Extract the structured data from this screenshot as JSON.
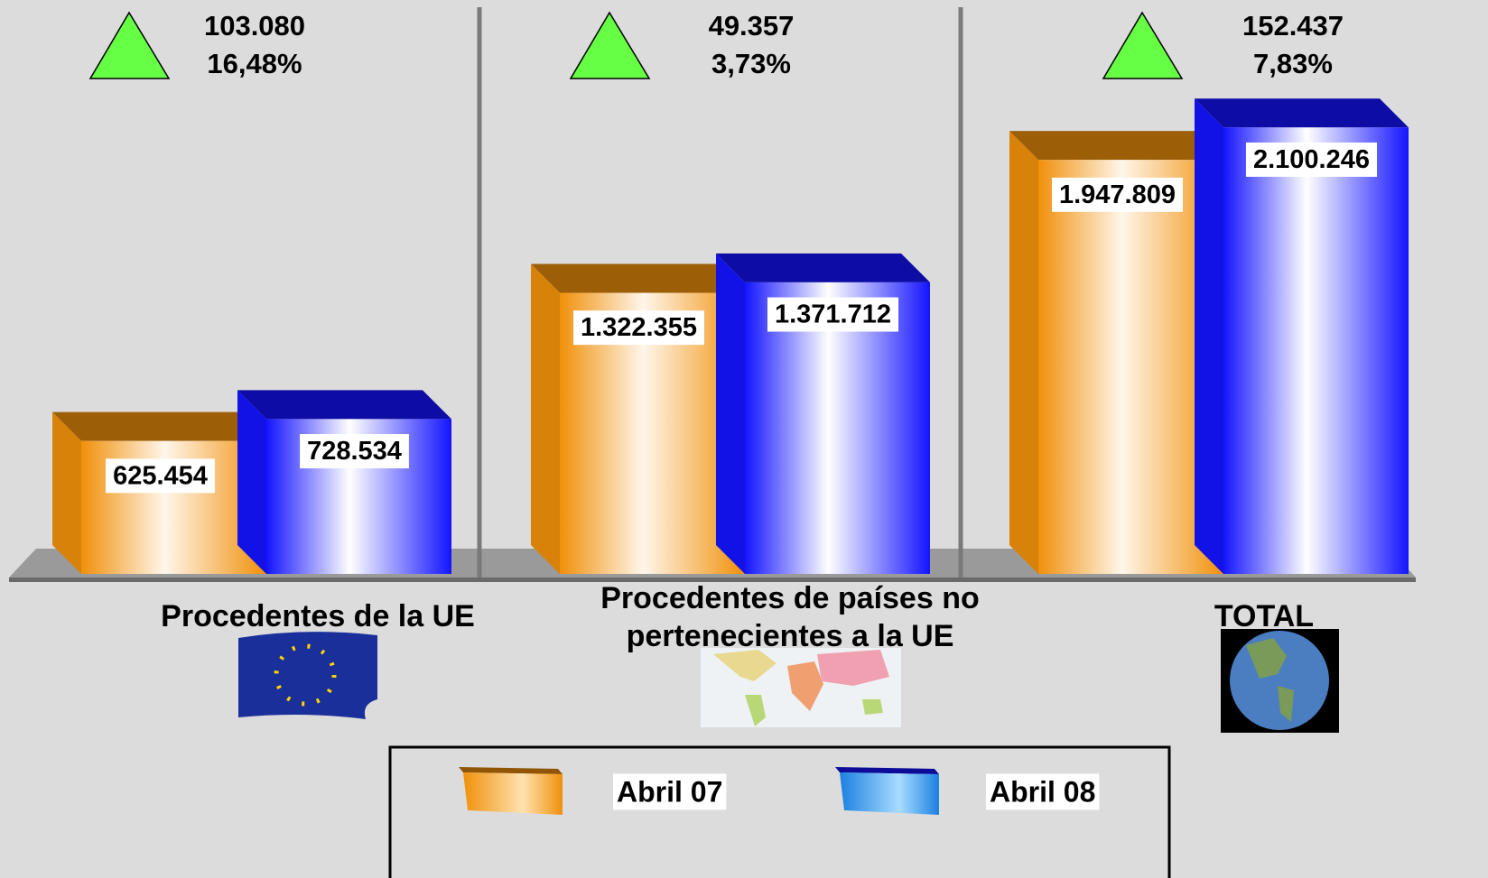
{
  "chart_data": {
    "type": "bar3d",
    "categories": [
      "Procedentes de la UE",
      "Procedentes de países no pertenecientes a la UE",
      "TOTAL"
    ],
    "series": [
      {
        "name": "Abril 07",
        "color": "#f0900a",
        "values": [
          625454,
          1322355,
          1947809
        ],
        "value_labels": [
          "625.454",
          "1.322.355",
          "1.947.809"
        ]
      },
      {
        "name": "Abril 08",
        "color": "#1414ff",
        "values": [
          728534,
          1371712,
          2100246
        ],
        "value_labels": [
          "728.534",
          "1.371.712",
          "2.100.246"
        ]
      }
    ],
    "ylim": [
      0,
      2700000
    ],
    "annotations": [
      {
        "difference": "103.080",
        "percent": "16,48%"
      },
      {
        "difference": "49.357",
        "percent": "3,73%"
      },
      {
        "difference": "152.437",
        "percent": "7,83%"
      }
    ]
  }
}
